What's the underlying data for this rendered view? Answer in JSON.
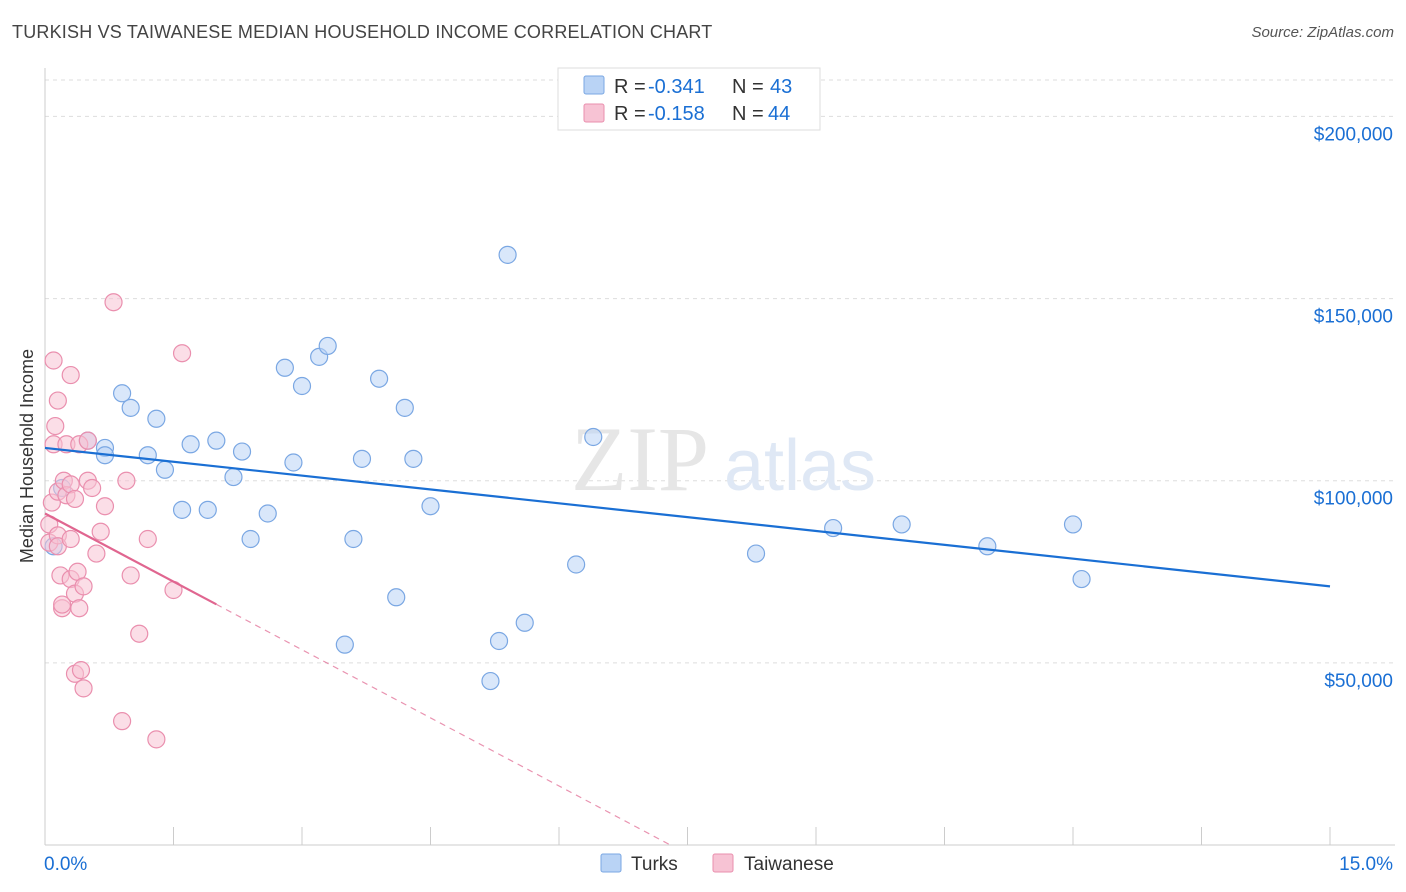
{
  "title": "TURKISH VS TAIWANESE MEDIAN HOUSEHOLD INCOME CORRELATION CHART",
  "source": "Source: ZipAtlas.com",
  "watermark": {
    "zip": "ZIP",
    "atlas": "atlas"
  },
  "legend_top": [
    {
      "swatch": "#b9d3f5",
      "stroke": "#7aa7e3",
      "r_label": "R =",
      "r_value": "-0.341",
      "n_label": "N =",
      "n_value": "43"
    },
    {
      "swatch": "#f7c3d4",
      "stroke": "#ea8fae",
      "r_label": "R =",
      "r_value": "-0.158",
      "n_label": "N =",
      "n_value": "44"
    }
  ],
  "chart_data": {
    "type": "scatter",
    "ylabel": "Median Household Income",
    "xlabel": "",
    "xlim": [
      0,
      15
    ],
    "ylim": [
      0,
      210000
    ],
    "x_tick_labels": [
      {
        "x": 0,
        "label": "0.0%"
      },
      {
        "x": 15,
        "label": "15.0%"
      }
    ],
    "y_tick_labels": [
      {
        "y": 50000,
        "label": "$50,000"
      },
      {
        "y": 100000,
        "label": "$100,000"
      },
      {
        "y": 150000,
        "label": "$150,000"
      },
      {
        "y": 200000,
        "label": "$200,000"
      }
    ],
    "series": [
      {
        "name": "Turks",
        "color": "#7aa7e3",
        "fill": "#b9d3f5",
        "line_color": "#1a6fd4",
        "trend": {
          "x0": 0.0,
          "y0": 109000,
          "x1": 15.0,
          "y1": 71000,
          "solid_until": 15.0
        },
        "points": [
          [
            0.1,
            82000
          ],
          [
            0.2,
            98000
          ],
          [
            0.5,
            111000
          ],
          [
            0.7,
            109000
          ],
          [
            0.7,
            107000
          ],
          [
            0.9,
            124000
          ],
          [
            1.0,
            120000
          ],
          [
            1.2,
            107000
          ],
          [
            1.3,
            117000
          ],
          [
            1.4,
            103000
          ],
          [
            1.6,
            92000
          ],
          [
            1.7,
            110000
          ],
          [
            1.9,
            92000
          ],
          [
            2.0,
            111000
          ],
          [
            2.2,
            101000
          ],
          [
            2.3,
            108000
          ],
          [
            2.4,
            84000
          ],
          [
            2.6,
            91000
          ],
          [
            2.8,
            131000
          ],
          [
            2.9,
            105000
          ],
          [
            3.0,
            126000
          ],
          [
            3.2,
            134000
          ],
          [
            3.3,
            137000
          ],
          [
            3.5,
            55000
          ],
          [
            3.6,
            84000
          ],
          [
            3.7,
            106000
          ],
          [
            3.9,
            128000
          ],
          [
            4.1,
            68000
          ],
          [
            4.2,
            120000
          ],
          [
            4.3,
            106000
          ],
          [
            4.5,
            93000
          ],
          [
            5.2,
            45000
          ],
          [
            5.3,
            56000
          ],
          [
            5.4,
            162000
          ],
          [
            5.6,
            61000
          ],
          [
            6.2,
            77000
          ],
          [
            6.4,
            112000
          ],
          [
            8.3,
            80000
          ],
          [
            9.2,
            87000
          ],
          [
            10.0,
            88000
          ],
          [
            11.0,
            82000
          ],
          [
            12.0,
            88000
          ],
          [
            12.1,
            73000
          ]
        ]
      },
      {
        "name": "Taiwanese",
        "color": "#ea8fae",
        "fill": "#f7c3d4",
        "line_color": "#e06690",
        "trend": {
          "x0": 0.0,
          "y0": 91000,
          "x1": 7.3,
          "y1": 0,
          "solid_until": 2.0
        },
        "points": [
          [
            0.05,
            83000
          ],
          [
            0.05,
            88000
          ],
          [
            0.08,
            94000
          ],
          [
            0.1,
            110000
          ],
          [
            0.1,
            133000
          ],
          [
            0.12,
            115000
          ],
          [
            0.15,
            122000
          ],
          [
            0.15,
            97000
          ],
          [
            0.15,
            85000
          ],
          [
            0.15,
            82000
          ],
          [
            0.18,
            74000
          ],
          [
            0.2,
            65000
          ],
          [
            0.2,
            66000
          ],
          [
            0.22,
            100000
          ],
          [
            0.25,
            96000
          ],
          [
            0.25,
            110000
          ],
          [
            0.3,
            99000
          ],
          [
            0.3,
            129000
          ],
          [
            0.3,
            84000
          ],
          [
            0.3,
            73000
          ],
          [
            0.35,
            95000
          ],
          [
            0.35,
            69000
          ],
          [
            0.35,
            47000
          ],
          [
            0.38,
            75000
          ],
          [
            0.4,
            110000
          ],
          [
            0.4,
            65000
          ],
          [
            0.42,
            48000
          ],
          [
            0.45,
            43000
          ],
          [
            0.45,
            71000
          ],
          [
            0.5,
            100000
          ],
          [
            0.5,
            111000
          ],
          [
            0.55,
            98000
          ],
          [
            0.6,
            80000
          ],
          [
            0.65,
            86000
          ],
          [
            0.7,
            93000
          ],
          [
            0.8,
            149000
          ],
          [
            0.9,
            34000
          ],
          [
            0.95,
            100000
          ],
          [
            1.0,
            74000
          ],
          [
            1.1,
            58000
          ],
          [
            1.2,
            84000
          ],
          [
            1.3,
            29000
          ],
          [
            1.5,
            70000
          ],
          [
            1.6,
            135000
          ]
        ]
      }
    ],
    "legend_bottom": [
      "Turks",
      "Taiwanese"
    ]
  }
}
